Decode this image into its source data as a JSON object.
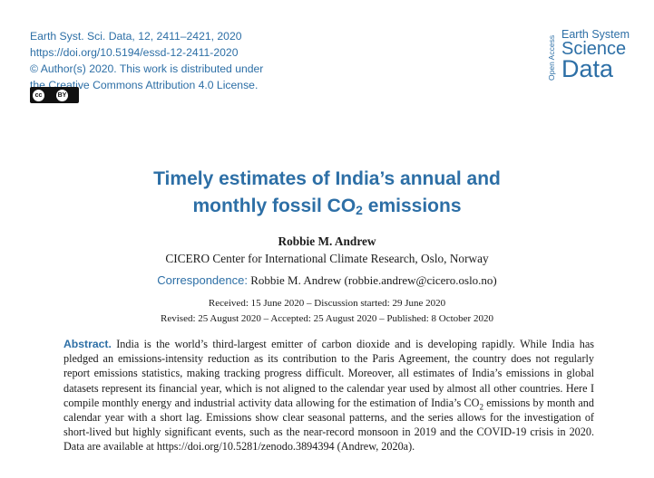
{
  "header": {
    "citation": "Earth Syst. Sci. Data, 12, 2411–2421, 2020",
    "doi": "https://doi.org/10.5194/essd-12-2411-2020",
    "copyright": "© Author(s) 2020. This work is distributed under",
    "license": "the Creative Commons Attribution 4.0 License."
  },
  "badge": {
    "cc": "cc",
    "by": "BY"
  },
  "logo": {
    "open_access": "Open Access",
    "line1": "Earth System",
    "line2": "Science",
    "line3": "Data"
  },
  "paper": {
    "title_line1": "Timely estimates of India’s annual and",
    "title_line2_pre": "monthly fossil CO",
    "title_sub": "2",
    "title_line2_post": " emissions",
    "author": "Robbie M. Andrew",
    "affiliation": "CICERO Center for International Climate Research, Oslo, Norway",
    "correspondence_label": "Correspondence:",
    "correspondence_text": " Robbie M. Andrew (robbie.andrew@cicero.oslo.no)",
    "dates_line1": "Received: 15 June 2020 – Discussion started: 29 June 2020",
    "dates_line2": "Revised: 25 August 2020 – Accepted: 25 August 2020 – Published: 8 October 2020"
  },
  "abstract": {
    "label": "Abstract.",
    "part1": " India is the world’s third-largest emitter of carbon dioxide and is developing rapidly. While India has pledged an emissions-intensity reduction as its contribution to the Paris Agreement, the country does not regularly report emissions statistics, making tracking progress difficult. Moreover, all estimates of India’s emissions in global datasets represent its financial year, which is not aligned to the calendar year used by almost all other countries. Here I compile monthly energy and industrial activity data allowing for the estimation of India’s CO",
    "sub": "2",
    "part2": " emissions by month and calendar year with a short lag. Emissions show clear seasonal patterns, and the series allows for the investigation of short-lived but highly significant events, such as the near-record monsoon in 2019 and the COVID-19 crisis in 2020. Data are available at https://doi.org/10.5281/zenodo.3894394 (Andrew, 2020a)."
  }
}
